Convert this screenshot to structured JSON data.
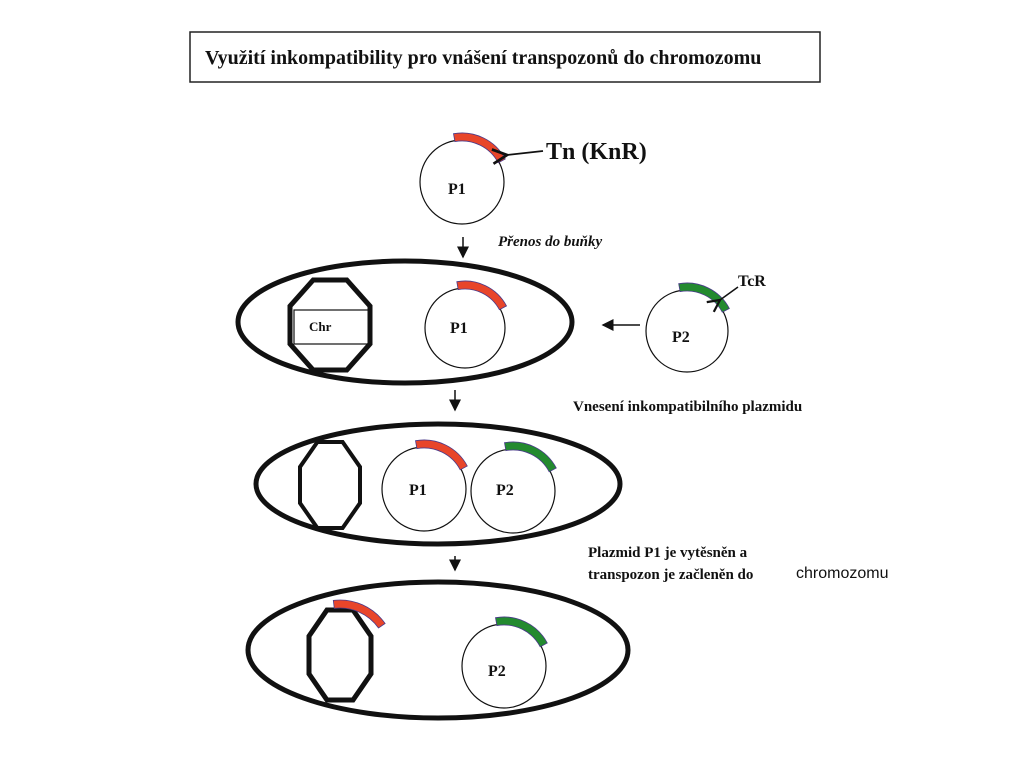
{
  "title": "Využití inkompatibility pro vnášení transpozonů do chromozomu",
  "colors": {
    "transposon": "#e8452a",
    "tcr_gene": "#238a2f",
    "outline": "#111111"
  },
  "step0": {
    "plasmid_label": "P1",
    "transposon_label": "Tn (KnR)"
  },
  "step1": {
    "arrow_label": "Přenos do buňky",
    "chromosome_label": "Chr",
    "plasmid_label": "P1",
    "incoming_plasmid_label": "P2",
    "incoming_gene_label": "TcR"
  },
  "step2": {
    "arrow_label": "Vnesení inkompatibilního plazmidu",
    "plasmid1_label": "P1",
    "plasmid2_label": "P2"
  },
  "step3": {
    "arrow_label_line1": "Plazmid P1 je vytěsněn a",
    "arrow_label_line2": "transpozon je začleněn do",
    "arrow_label_line2_end": "chromozomu",
    "plasmid_label": "P2"
  }
}
